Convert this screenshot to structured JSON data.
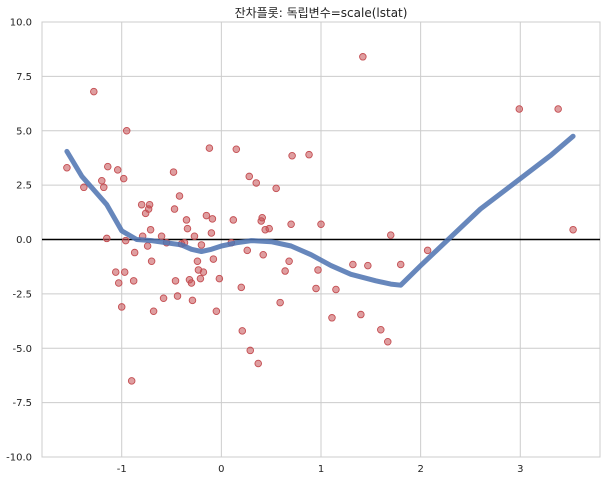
{
  "chart_data": {
    "type": "scatter",
    "title": "잔차플롯: 독립변수=scale(lstat)",
    "xlabel": "",
    "ylabel": "",
    "xlim": [
      -1.8,
      3.8
    ],
    "ylim": [
      -10,
      10
    ],
    "xticks": [
      -1,
      0,
      1,
      2,
      3
    ],
    "xtick_labels": [
      "-1",
      "0",
      "1",
      "2",
      "3"
    ],
    "yticks": [
      -10,
      -7.5,
      -5,
      -2.5,
      0,
      2.5,
      5,
      7.5,
      10
    ],
    "ytick_labels": [
      "-10.0",
      "-7.5",
      "-5.0",
      "-2.5",
      "0.0",
      "2.5",
      "5.0",
      "7.5",
      "10.0"
    ],
    "grid": true,
    "reference_line_y": 0,
    "colors": {
      "points": "#c44e52",
      "smooth_line": "#4c72b0",
      "reference_line": "#000000",
      "grid": "#cccccc"
    },
    "series": [
      {
        "type": "scatter",
        "x": [
          -1.55,
          -1.38,
          -1.28,
          -1.2,
          -1.18,
          -1.15,
          -1.14,
          -1.06,
          -1.04,
          -1.03,
          -1.0,
          -0.98,
          -0.97,
          -0.96,
          -0.95,
          -0.9,
          -0.88,
          -0.87,
          -0.8,
          -0.79,
          -0.76,
          -0.74,
          -0.73,
          -0.72,
          -0.71,
          -0.7,
          -0.68,
          -0.6,
          -0.58,
          -0.55,
          -0.48,
          -0.47,
          -0.46,
          -0.44,
          -0.42,
          -0.4,
          -0.37,
          -0.35,
          -0.34,
          -0.32,
          -0.3,
          -0.29,
          -0.27,
          -0.24,
          -0.23,
          -0.21,
          -0.2,
          -0.18,
          -0.15,
          -0.12,
          -0.1,
          -0.09,
          -0.08,
          -0.05,
          -0.02,
          0.1,
          0.12,
          0.15,
          0.2,
          0.21,
          0.26,
          0.28,
          0.29,
          0.35,
          0.37,
          0.4,
          0.41,
          0.42,
          0.44,
          0.48,
          0.55,
          0.59,
          0.64,
          0.68,
          0.7,
          0.71,
          0.88,
          0.95,
          0.97,
          1.0,
          1.11,
          1.15,
          1.32,
          1.4,
          1.42,
          1.47,
          1.6,
          1.67,
          1.7,
          1.8,
          2.07,
          2.99,
          3.38,
          3.53
        ],
        "y": [
          3.3,
          2.4,
          6.8,
          2.7,
          2.4,
          0.05,
          3.35,
          -1.5,
          3.2,
          -2.0,
          -3.1,
          2.8,
          -1.5,
          -0.05,
          5.0,
          -6.5,
          -1.9,
          -0.6,
          1.6,
          0.15,
          1.2,
          -0.3,
          1.4,
          1.6,
          0.45,
          -1.0,
          -3.3,
          0.15,
          -2.7,
          -0.15,
          3.1,
          1.4,
          -1.9,
          -2.6,
          2.0,
          -0.2,
          -0.15,
          0.9,
          0.5,
          -1.85,
          -2.0,
          -2.8,
          0.15,
          -1.0,
          -1.4,
          -1.8,
          -0.25,
          -1.5,
          1.1,
          4.2,
          0.3,
          0.95,
          -0.9,
          -3.3,
          -1.8,
          -0.15,
          0.9,
          4.15,
          -2.2,
          -4.2,
          -0.5,
          2.9,
          -5.1,
          2.6,
          -5.7,
          0.85,
          1.0,
          -0.7,
          0.45,
          0.5,
          2.35,
          -2.9,
          -1.45,
          -1.0,
          0.7,
          3.85,
          3.9,
          -2.25,
          -1.4,
          0.7,
          -3.6,
          -2.3,
          -1.15,
          -3.45,
          8.4,
          -1.2,
          -4.15,
          -4.7,
          0.2,
          -1.15,
          -0.5,
          6.0,
          6.0,
          0.45
        ]
      },
      {
        "type": "line",
        "x": [
          -1.55,
          -1.4,
          -1.15,
          -1.0,
          -0.85,
          -0.7,
          -0.55,
          -0.4,
          -0.3,
          -0.2,
          -0.1,
          0.0,
          0.15,
          0.3,
          0.5,
          0.7,
          0.9,
          1.1,
          1.3,
          1.55,
          1.7,
          1.8,
          2.0,
          2.3,
          2.6,
          3.0,
          3.3,
          3.53
        ],
        "y": [
          4.05,
          2.9,
          1.6,
          0.4,
          0.0,
          -0.05,
          -0.15,
          -0.25,
          -0.45,
          -0.55,
          -0.45,
          -0.3,
          -0.15,
          -0.05,
          -0.1,
          -0.3,
          -0.7,
          -1.2,
          -1.6,
          -1.9,
          -2.05,
          -2.1,
          -1.2,
          0.1,
          1.4,
          2.8,
          3.85,
          4.75
        ]
      }
    ]
  }
}
